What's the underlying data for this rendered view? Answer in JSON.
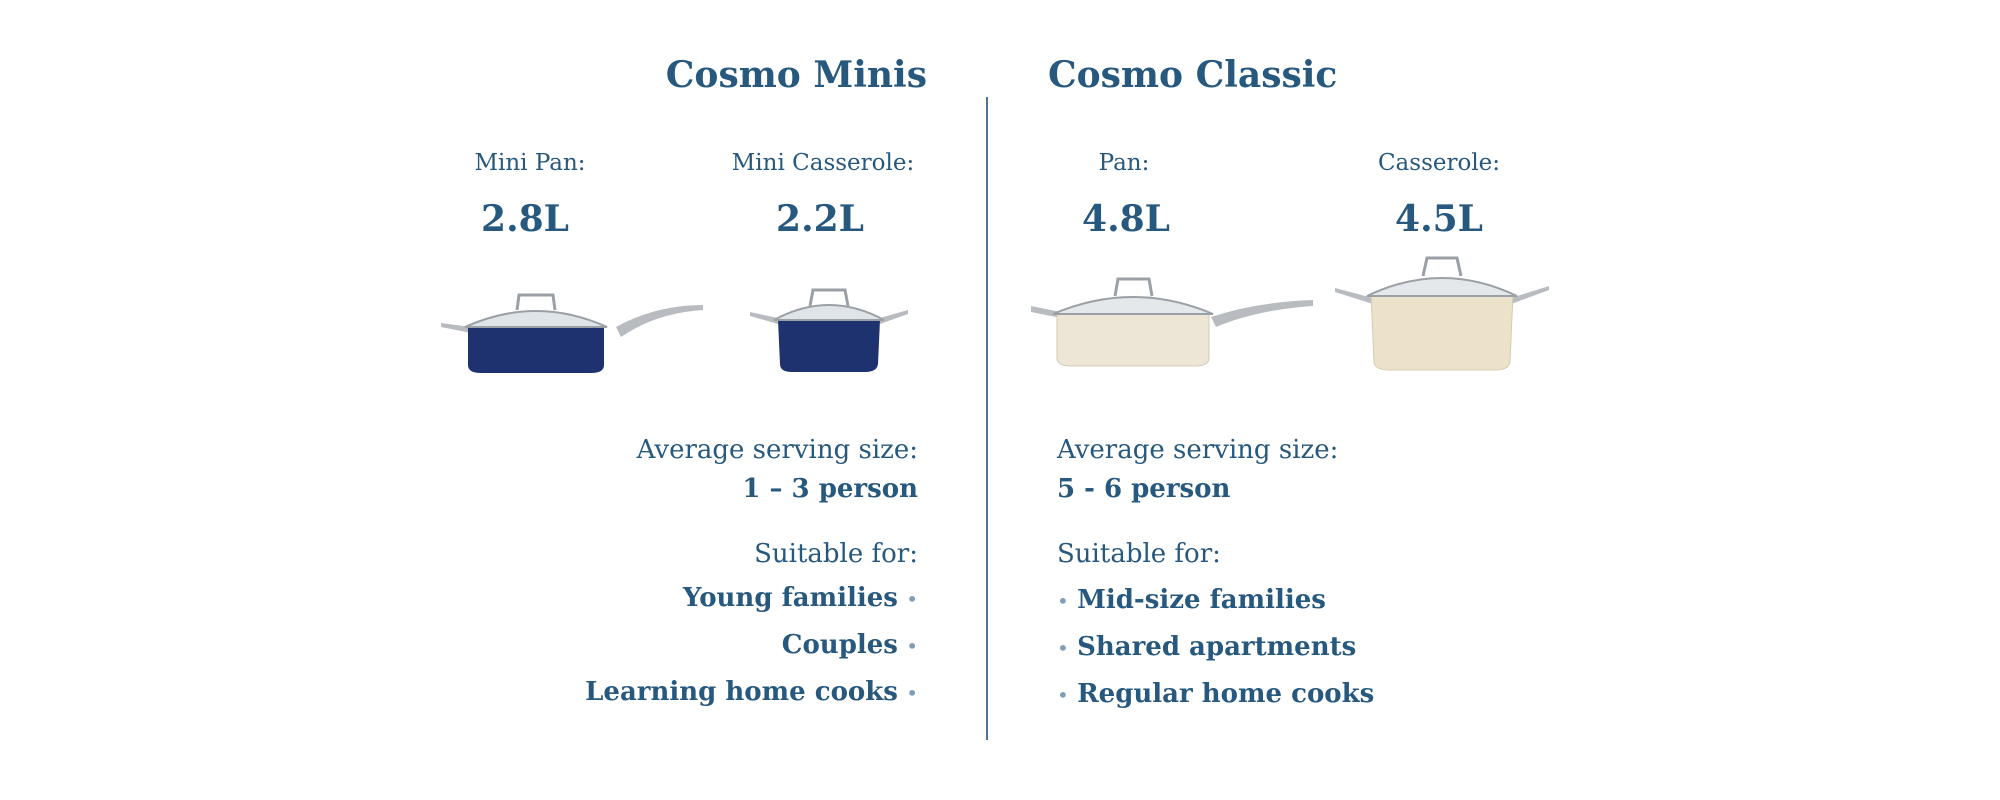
{
  "minis": {
    "title": "Cosmo Minis",
    "products": [
      {
        "label": "Mini Pan:",
        "volume": "2.8L",
        "color": "#1f3270"
      },
      {
        "label": "Mini Casserole:",
        "volume": "2.2L",
        "color": "#1f3270"
      }
    ],
    "serving_label": "Average serving size:",
    "serving_value": "1 – 3 person",
    "suitable_label": "Suitable for:",
    "suitable": [
      "Young families",
      "Couples",
      "Learning home cooks"
    ]
  },
  "classic": {
    "title": "Cosmo Classic",
    "products": [
      {
        "label": "Pan:",
        "volume": "4.8L",
        "color": "#ede6d6"
      },
      {
        "label": "Casserole:",
        "volume": "4.5L",
        "color": "#ebe2c9"
      }
    ],
    "serving_label": "Average serving size:",
    "serving_value": "5 - 6 person",
    "suitable_label": "Suitable for:",
    "suitable": [
      "Mid-size families",
      "Shared apartments",
      "Regular home cooks"
    ]
  },
  "colors": {
    "text": "#27587e",
    "bullet": "#7f9db6",
    "divider": "#4a7398"
  }
}
